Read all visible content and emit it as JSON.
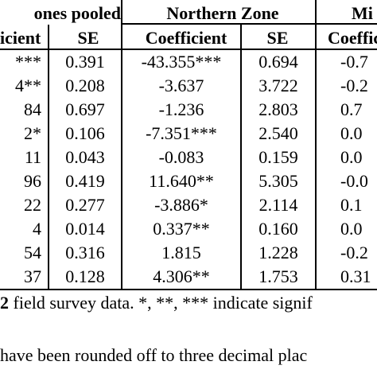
{
  "header": {
    "group_pooled": "ones pooled",
    "group_northern": "Northern Zone",
    "group_third": "Mi",
    "col_coef_a": "icient",
    "col_se_a": "SE",
    "col_coef_b": "Coefficient",
    "col_se_b": "SE",
    "col_coef_c": "Coeffic"
  },
  "rows": [
    {
      "c1": "***",
      "se1": "0.391",
      "c2": "-43.355***",
      "se2": "0.694",
      "c3": "-0.7"
    },
    {
      "c1": "4**",
      "se1": "0.208",
      "c2": "-3.637",
      "se2": "3.722",
      "c3": "-0.2"
    },
    {
      "c1": "84",
      "se1": "0.697",
      "c2": "-1.236",
      "se2": "2.803",
      "c3": "0.7"
    },
    {
      "c1": "2*",
      "se1": "0.106",
      "c2": "-7.351***",
      "se2": "2.540",
      "c3": "0.0"
    },
    {
      "c1": "11",
      "se1": "0.043",
      "c2": "-0.083",
      "se2": "0.159",
      "c3": "0.0"
    },
    {
      "c1": "96",
      "se1": "0.419",
      "c2": "11.640**",
      "se2": "5.305",
      "c3": "-0.0"
    },
    {
      "c1": "22",
      "se1": "0.277",
      "c2": "-3.886*",
      "se2": "2.114",
      "c3": "0.1"
    },
    {
      "c1": "4",
      "se1": "0.014",
      "c2": "0.337**",
      "se2": "0.160",
      "c3": "0.0"
    },
    {
      "c1": "54",
      "se1": "0.316",
      "c2": "1.815",
      "se2": "1.228",
      "c3": "-0.2"
    },
    {
      "c1": "37",
      "se1": "0.128",
      "c2": "4.306**",
      "se2": "1.753",
      "c3": "0.31"
    }
  ],
  "notes": {
    "line1_bold": "2",
    "line1_rest": " field survey data. *, **, *** indicate signif",
    "line2": " have been rounded off to three decimal plac"
  }
}
